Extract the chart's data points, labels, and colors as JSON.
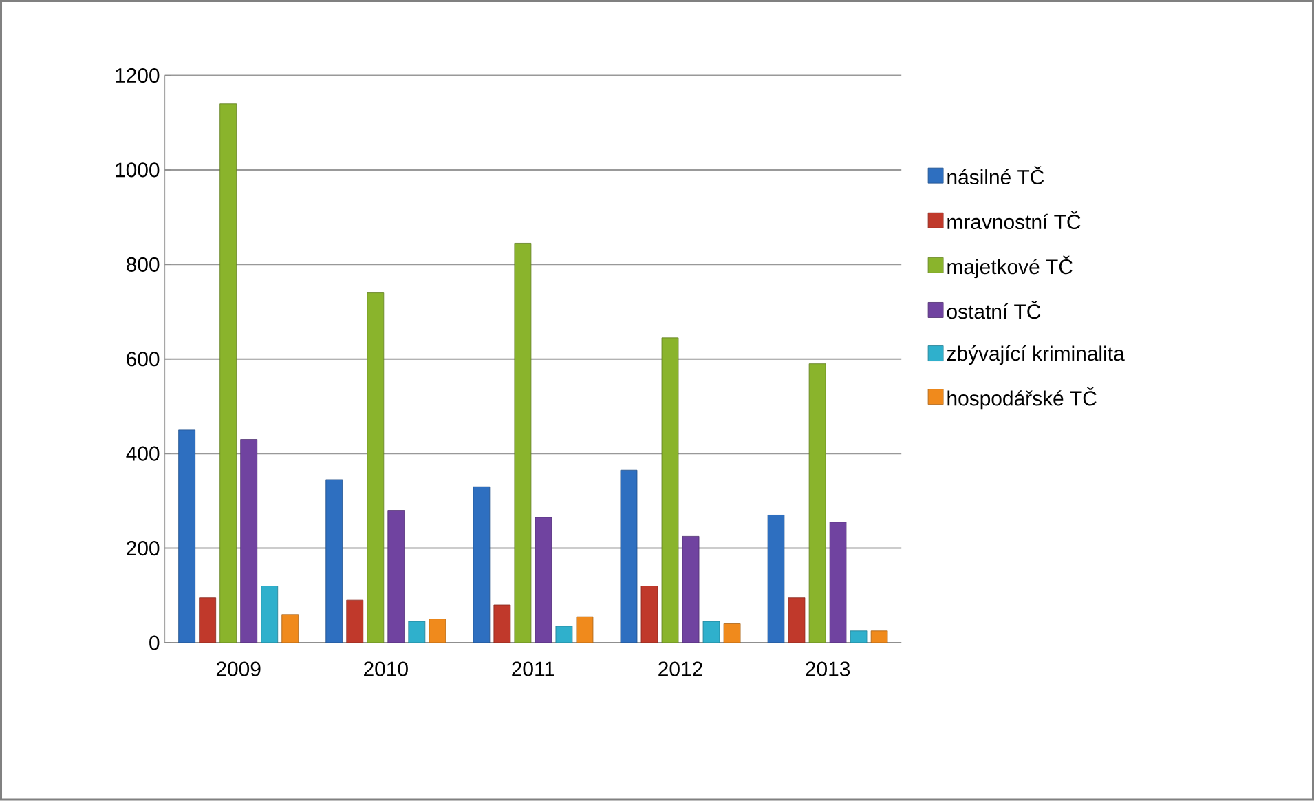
{
  "chart_data": {
    "type": "bar",
    "categories": [
      "2009",
      "2010",
      "2011",
      "2012",
      "2013"
    ],
    "series": [
      {
        "name": "násilné TČ",
        "color": "#2e6fc0",
        "values": [
          450,
          345,
          330,
          365,
          270
        ]
      },
      {
        "name": "mravnostní  TČ",
        "color": "#c0392b",
        "values": [
          95,
          90,
          80,
          120,
          95
        ]
      },
      {
        "name": "majetkové TČ",
        "color": "#8ab42c",
        "values": [
          1140,
          740,
          845,
          645,
          590
        ]
      },
      {
        "name": "ostatní TČ",
        "color": "#7043a0",
        "values": [
          430,
          280,
          265,
          225,
          255
        ]
      },
      {
        "name": "zbývající kriminalita",
        "color": "#2fb0cc",
        "values": [
          120,
          45,
          35,
          45,
          25
        ]
      },
      {
        "name": "hospodářské TČ",
        "color": "#f08a1c",
        "values": [
          60,
          50,
          55,
          40,
          25
        ]
      }
    ],
    "ylim": [
      0,
      1200
    ],
    "yticks": [
      0,
      200,
      400,
      600,
      800,
      1000,
      1200
    ],
    "grid": "y",
    "legend": "right"
  }
}
